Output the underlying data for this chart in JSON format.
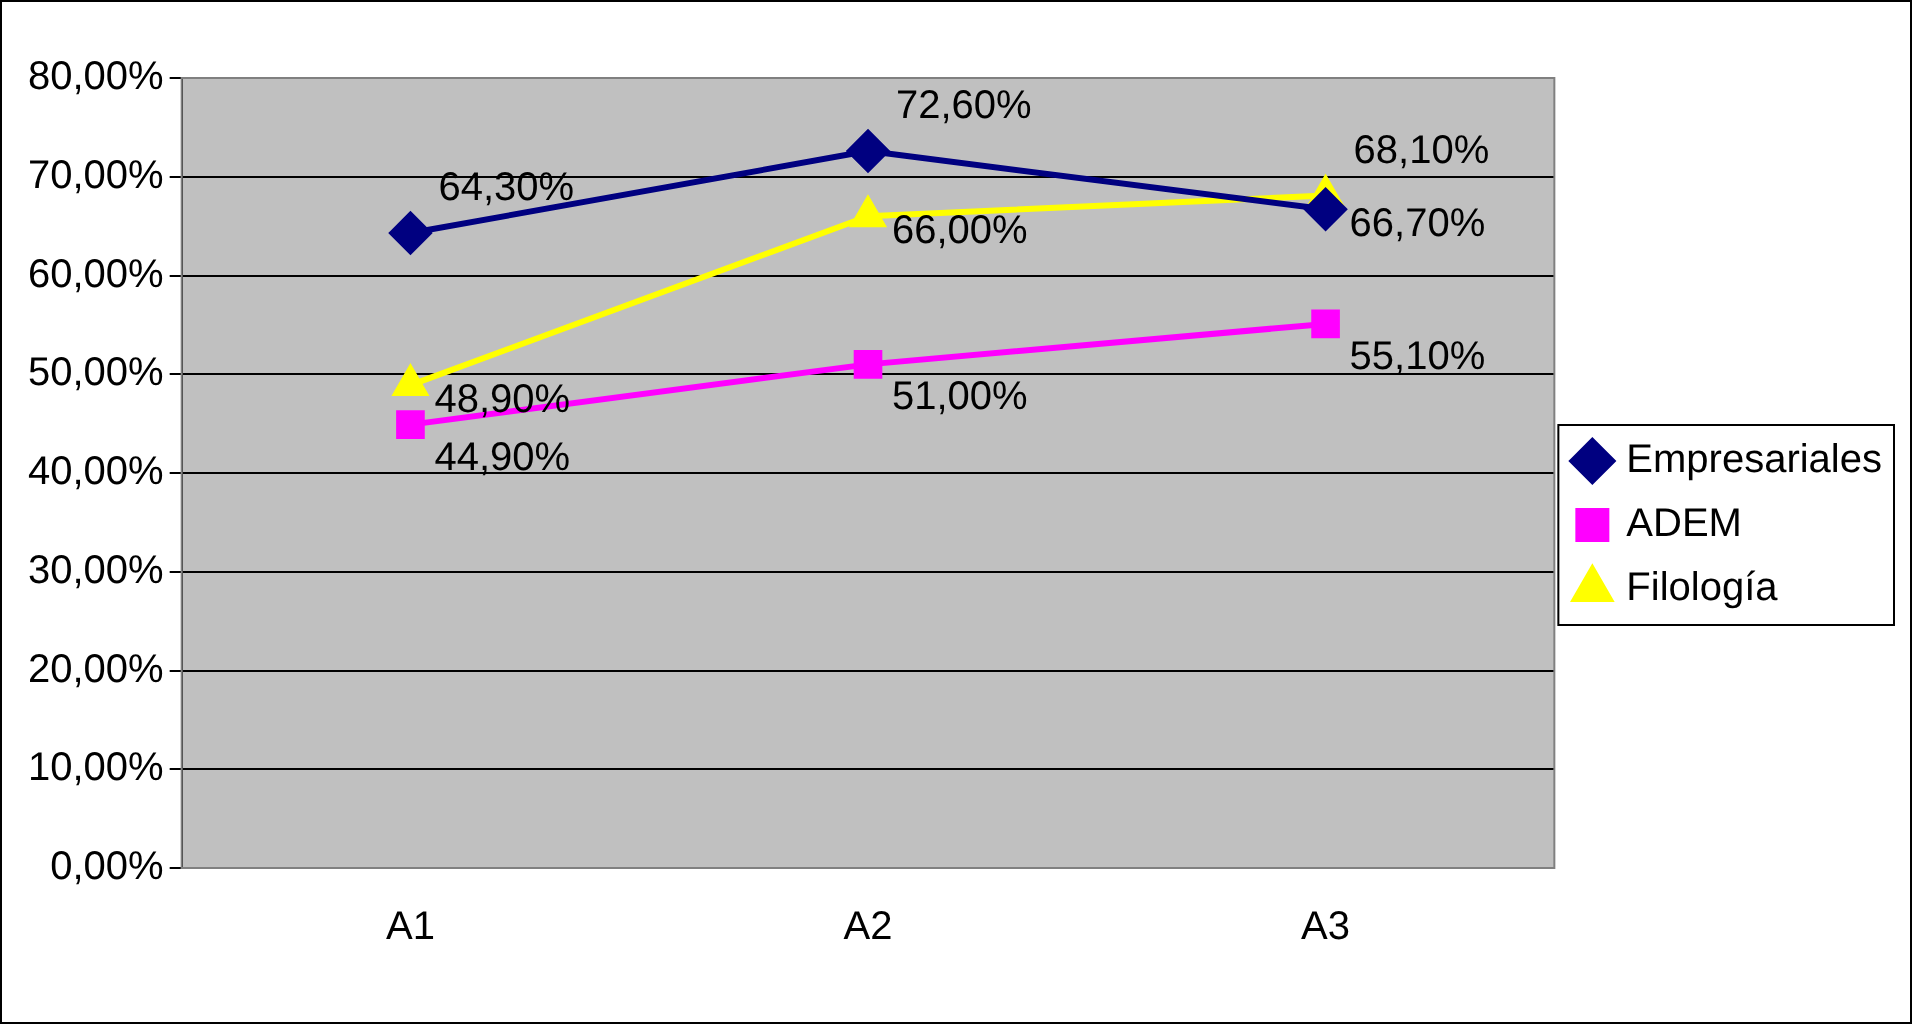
{
  "chart_data": {
    "type": "line",
    "categories": [
      "A1",
      "A2",
      "A3"
    ],
    "series": [
      {
        "name": "Empresariales",
        "color": "#000080",
        "marker": "diamond",
        "values": [
          64.3,
          72.6,
          66.7
        ],
        "value_labels": [
          "64,30%",
          "72,60%",
          "66,70%"
        ]
      },
      {
        "name": "ADEM",
        "color": "#ff00ff",
        "marker": "square",
        "values": [
          44.9,
          51.0,
          55.1
        ],
        "value_labels": [
          "44,90%",
          "51,00%",
          "55,10%"
        ]
      },
      {
        "name": "Filología",
        "color": "#ffff00",
        "marker": "triangle",
        "values": [
          48.9,
          66.0,
          68.1
        ],
        "value_labels": [
          "48,90%",
          "66,00%",
          "68,10%"
        ]
      }
    ],
    "ylim": [
      0,
      80
    ],
    "yticks": [
      {
        "value": 0,
        "label": "0,00%"
      },
      {
        "value": 10,
        "label": "10,00%"
      },
      {
        "value": 20,
        "label": "20,00%"
      },
      {
        "value": 30,
        "label": "30,00%"
      },
      {
        "value": 40,
        "label": "40,00%"
      },
      {
        "value": 50,
        "label": "50,00%"
      },
      {
        "value": 60,
        "label": "60,00%"
      },
      {
        "value": 70,
        "label": "70,00%"
      },
      {
        "value": 80,
        "label": "80,00%"
      }
    ],
    "grid": "y",
    "legend": "right",
    "line_style": "solid"
  }
}
